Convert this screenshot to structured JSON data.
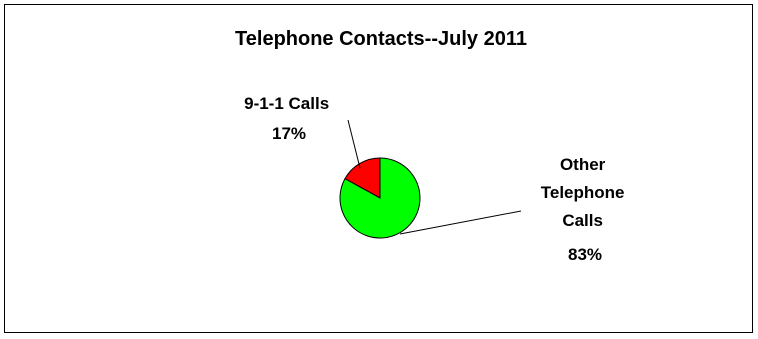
{
  "chart_data": {
    "type": "pie",
    "title": "Telephone Contacts--July 2011",
    "slices": [
      {
        "label_lines": [
          "9-1-1 Calls",
          "17%"
        ],
        "value": 17,
        "color": "#ff0000"
      },
      {
        "label_lines": [
          "Other",
          "Telephone",
          "Calls",
          "83%"
        ],
        "value": 83,
        "color": "#00ff00"
      }
    ],
    "legend": "none"
  }
}
